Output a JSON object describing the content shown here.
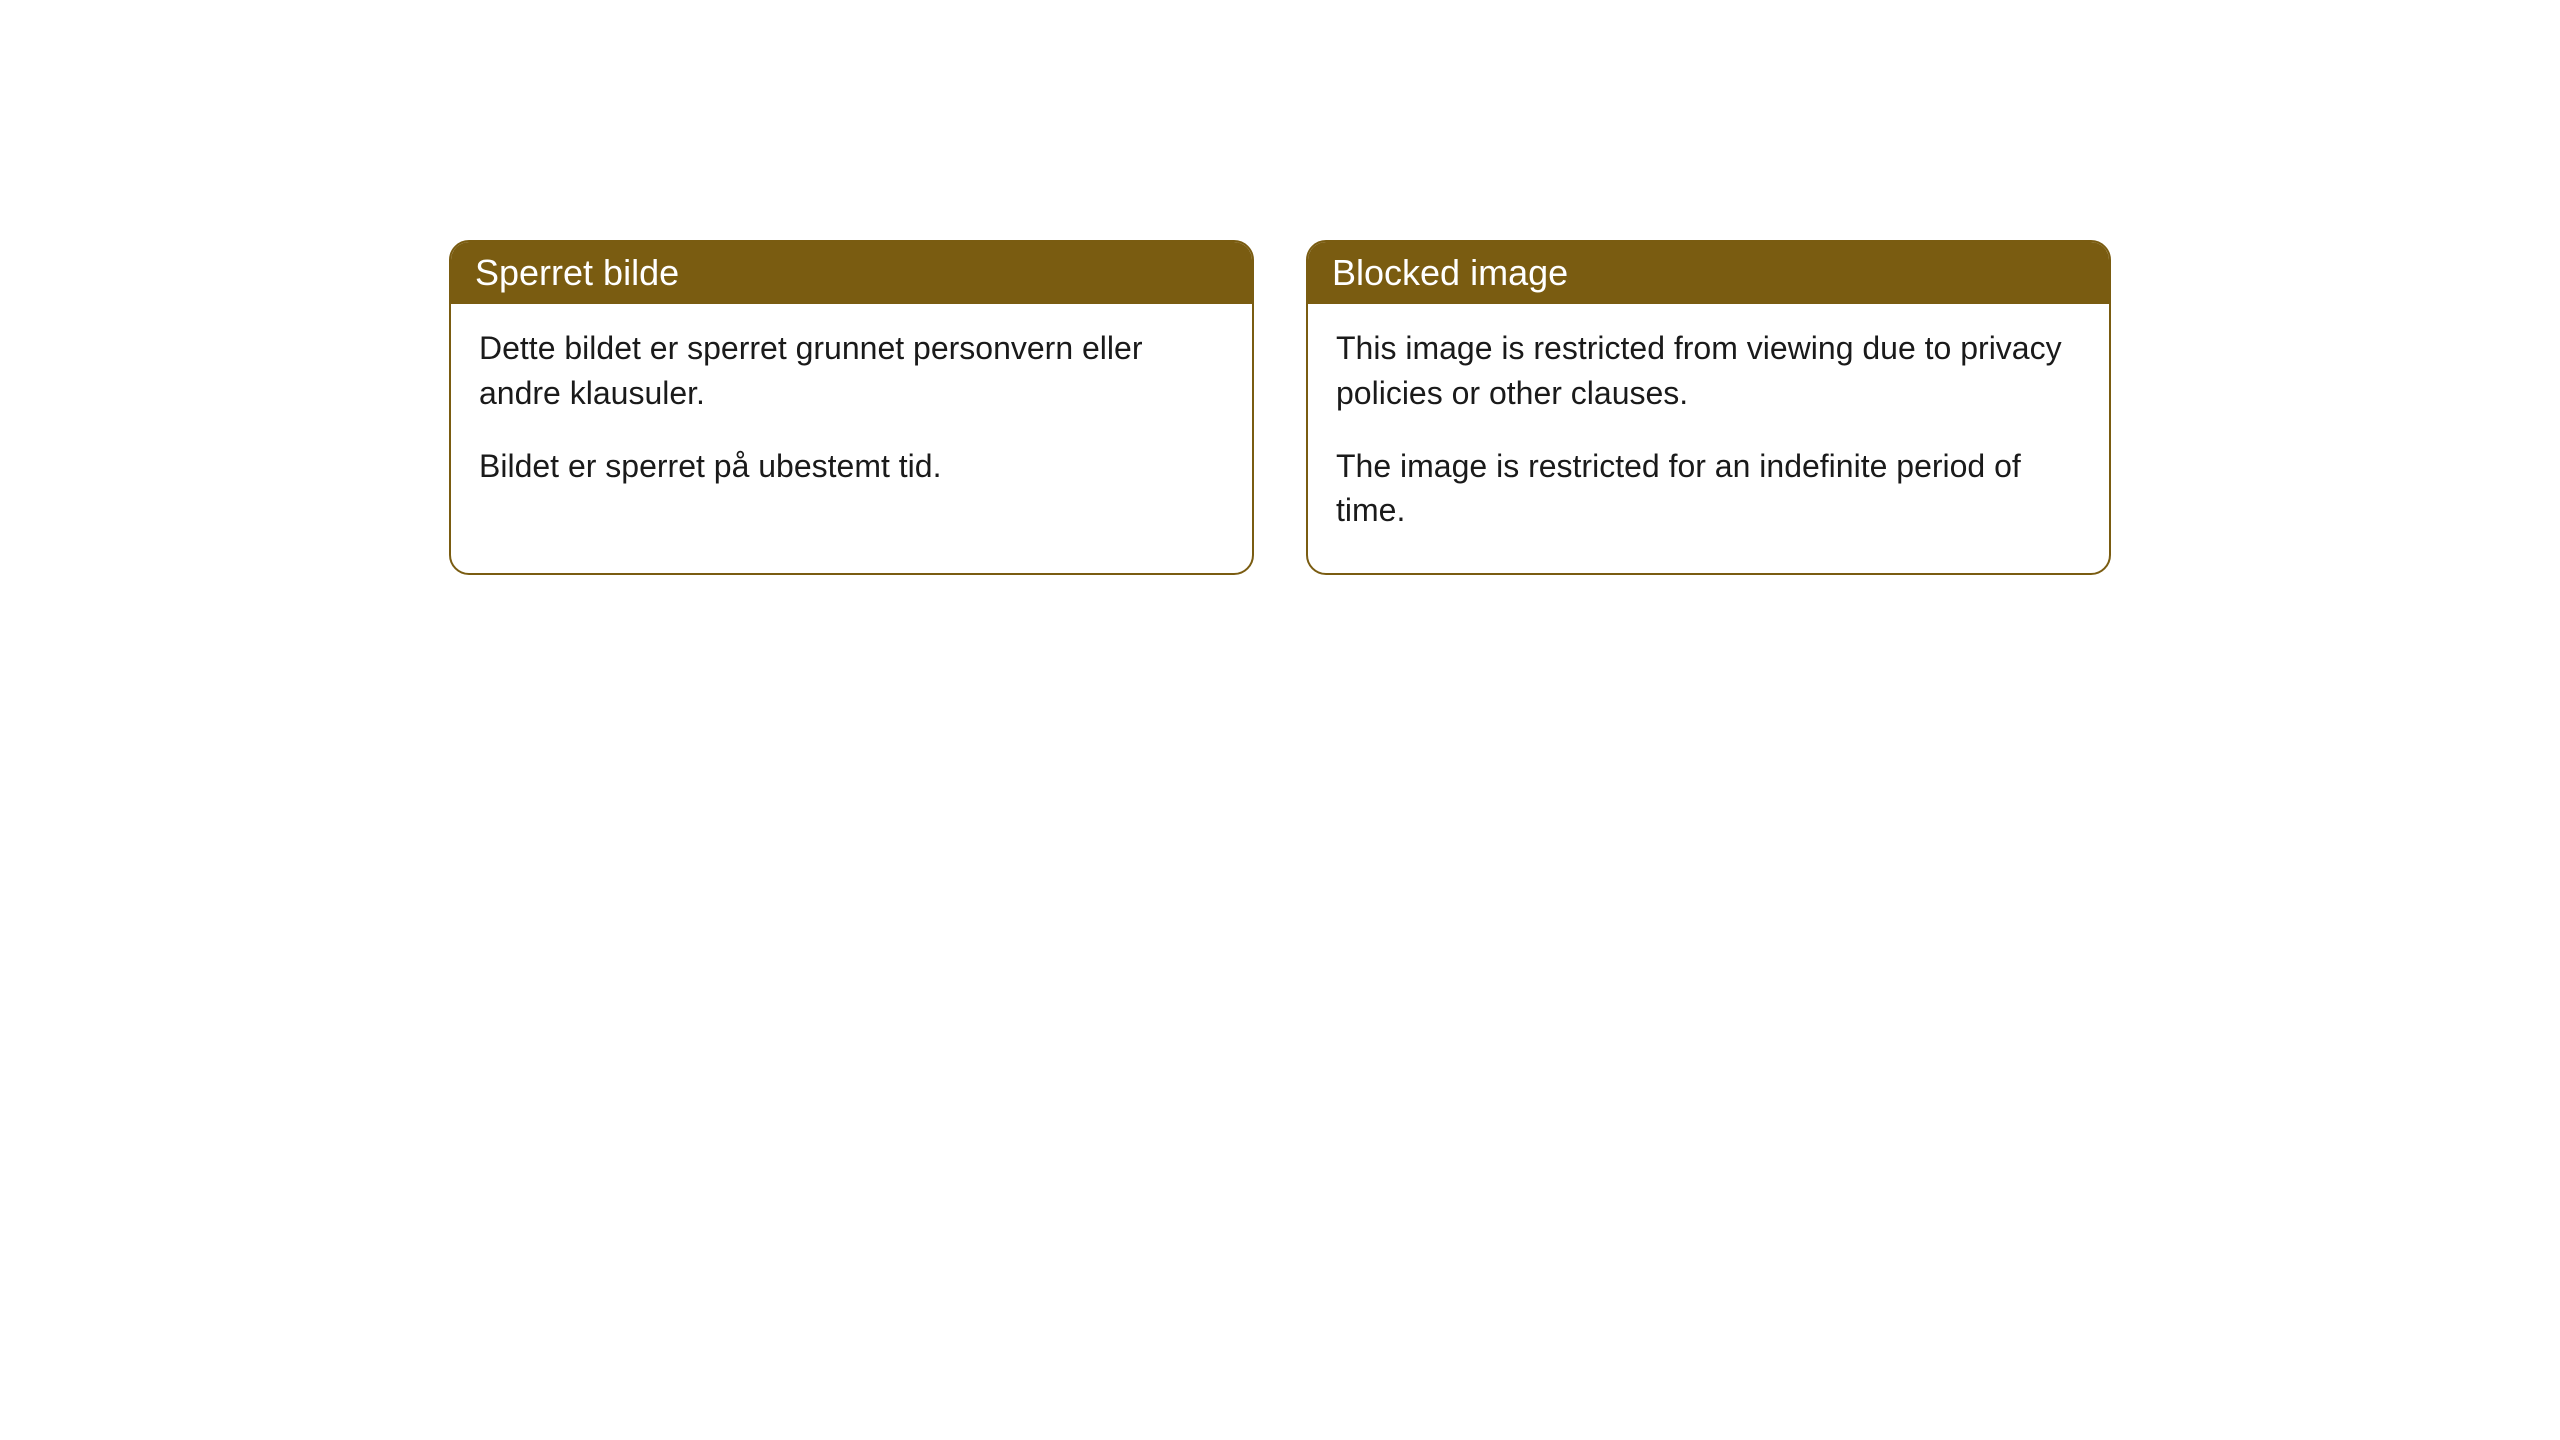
{
  "cards": [
    {
      "title": "Sperret bilde",
      "paragraph1": "Dette bildet er sperret grunnet personvern eller andre klausuler.",
      "paragraph2": "Bildet er sperret på ubestemt tid."
    },
    {
      "title": "Blocked image",
      "paragraph1": "This image is restricted from viewing due to privacy policies or other clauses.",
      "paragraph2": "The image is restricted for an indefinite period of time."
    }
  ],
  "styling": {
    "header_background": "#7a5c11",
    "header_text_color": "#ffffff",
    "border_color": "#7a5c11",
    "body_background": "#ffffff",
    "body_text_color": "#1a1a1a",
    "border_radius": 20,
    "title_fontsize": 36,
    "body_fontsize": 32
  }
}
